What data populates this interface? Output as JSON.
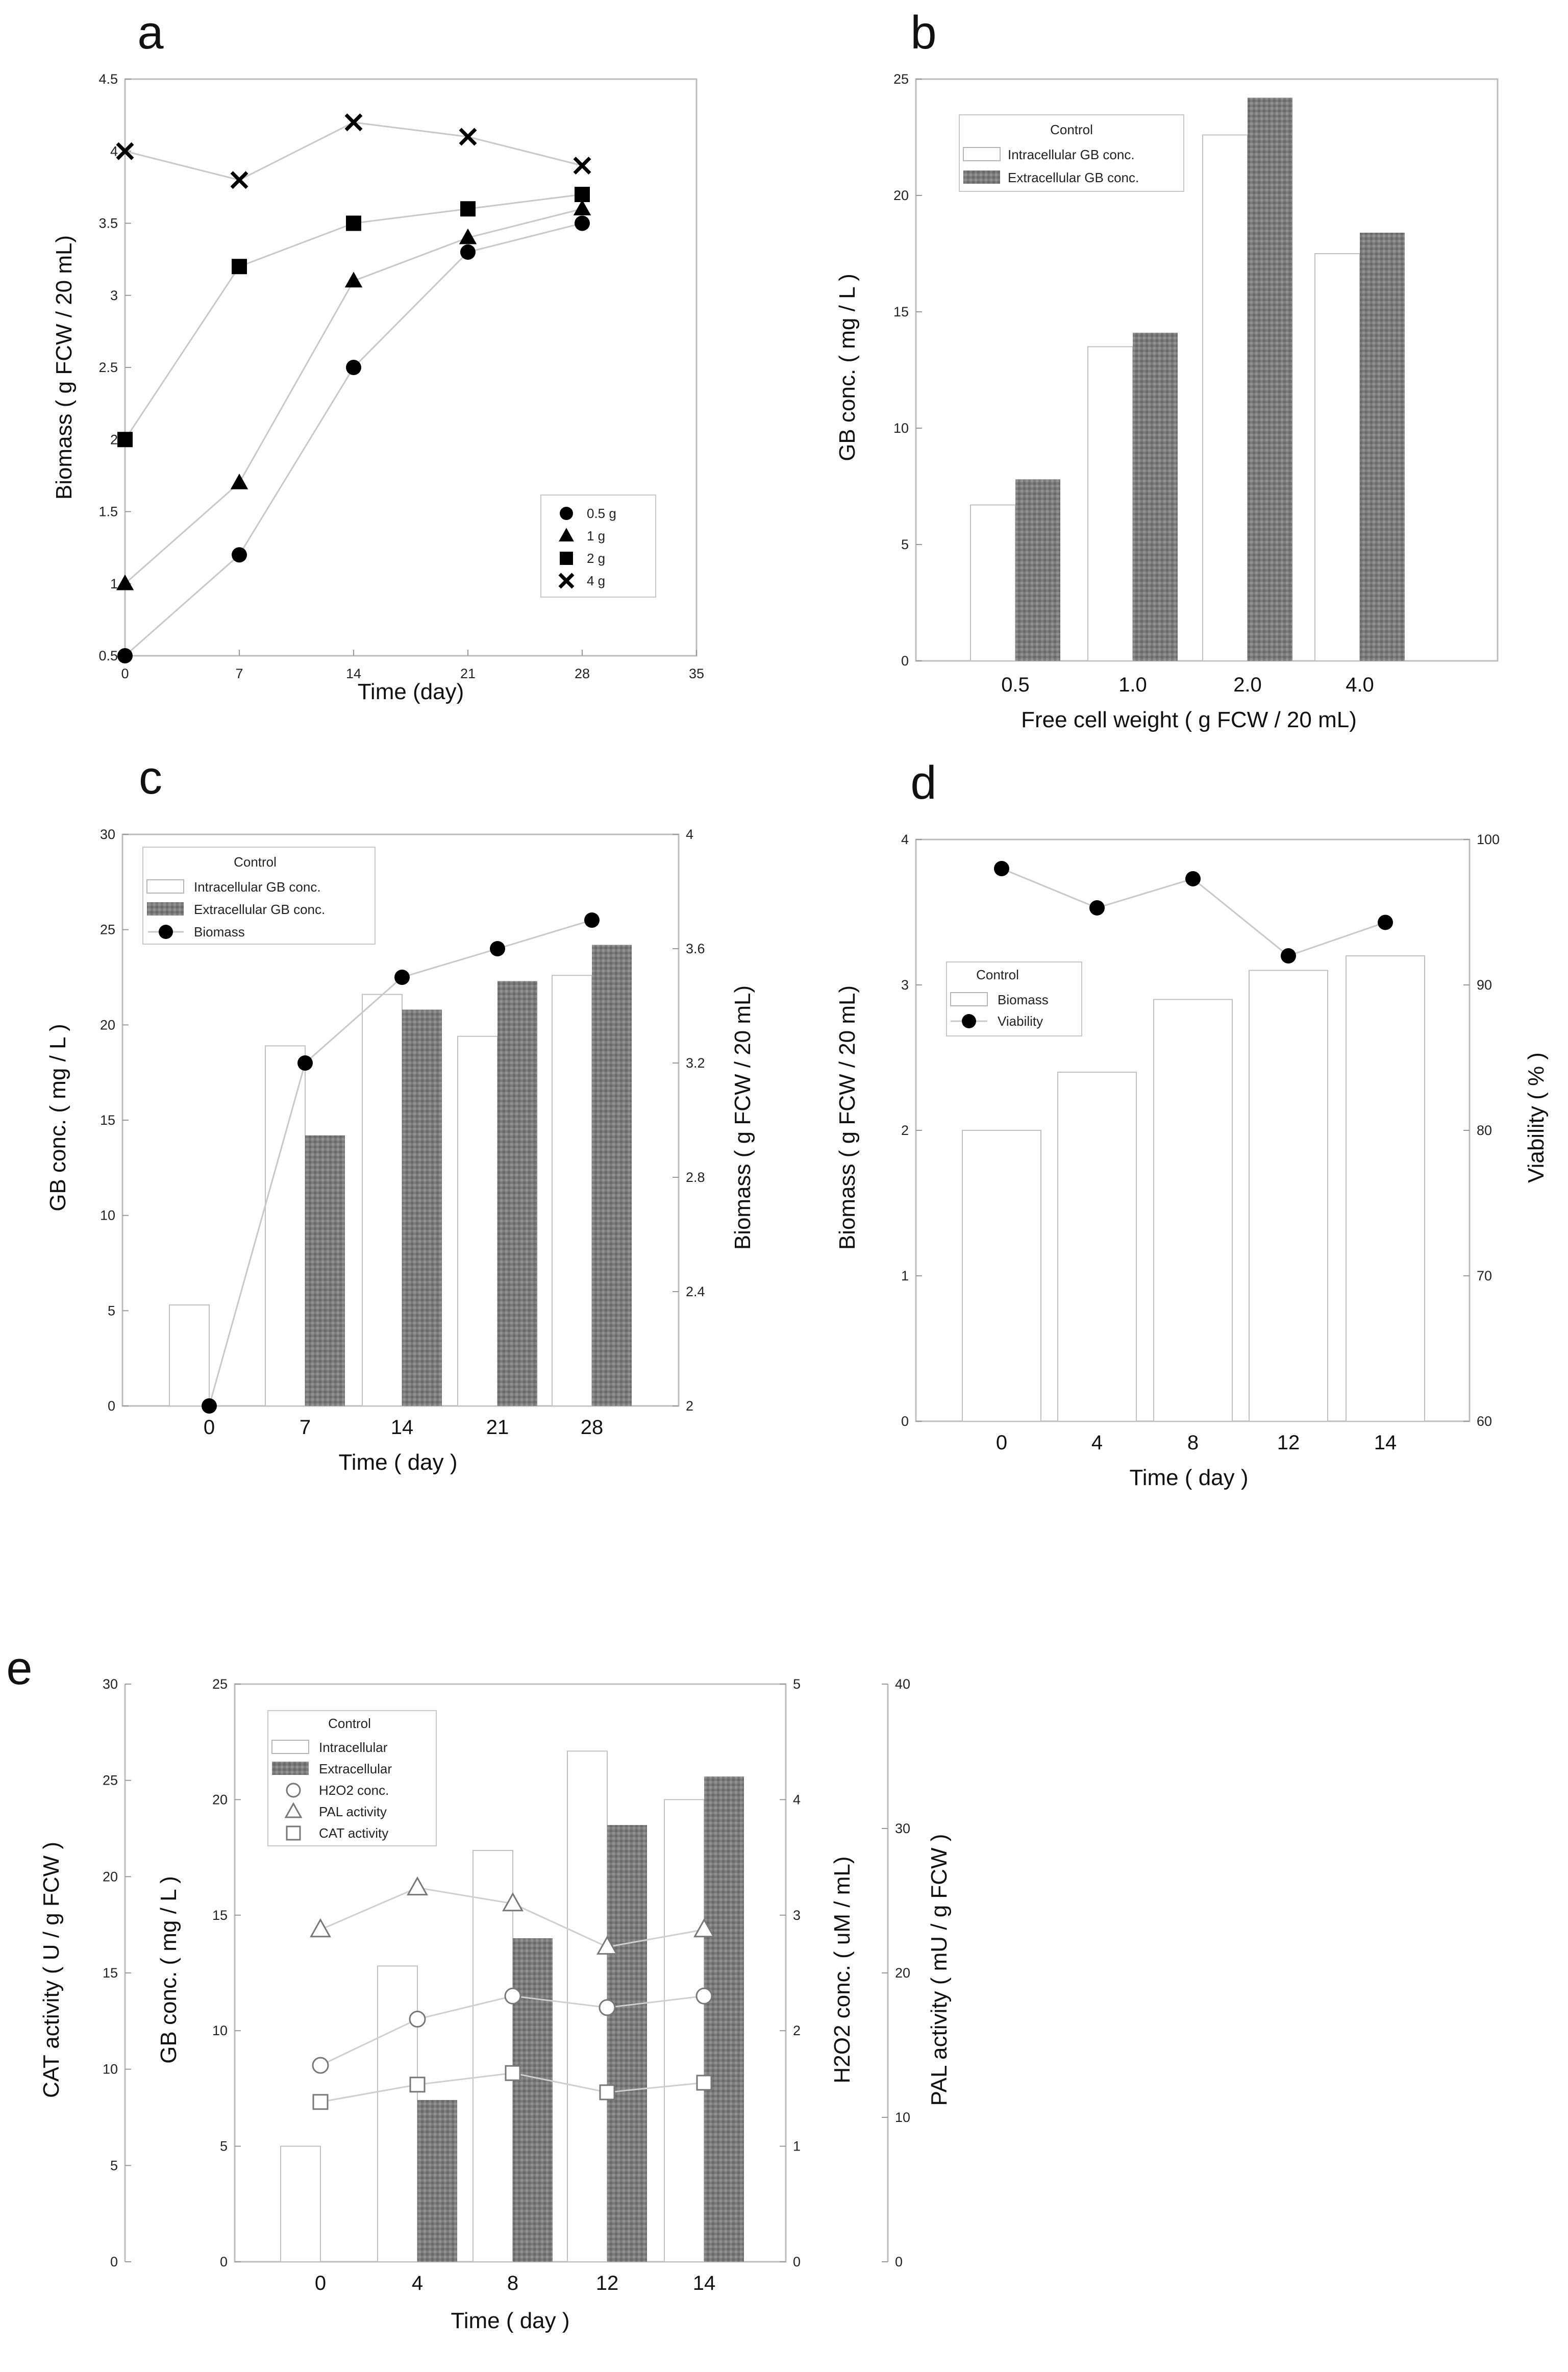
{
  "chart_data": [
    {
      "panel": "a",
      "type": "scatter",
      "xlabel": "Time (day)",
      "ylabel": "Biomass ( g FCW / 20 mL)",
      "xlim": [
        0,
        35
      ],
      "ylim": [
        0.5,
        4.5
      ],
      "xticks": [
        "0",
        "7",
        "14",
        "21",
        "28",
        "35"
      ],
      "yticks": [
        "0.5",
        "1",
        "1.5",
        "2",
        "2.5",
        "3",
        "3.5",
        "4",
        "4.5"
      ],
      "x": [
        0,
        7,
        14,
        21,
        28
      ],
      "legend_position": "bottom-right",
      "series": [
        {
          "name": "0.5 g",
          "marker": "circle",
          "values": [
            0.5,
            1.2,
            2.5,
            3.3,
            3.5
          ]
        },
        {
          "name": "1 g",
          "marker": "triangle",
          "values": [
            1.0,
            1.7,
            3.1,
            3.4,
            3.6
          ]
        },
        {
          "name": "2 g",
          "marker": "square",
          "values": [
            2.0,
            3.2,
            3.5,
            3.6,
            3.7
          ]
        },
        {
          "name": "4 g",
          "marker": "cross",
          "values": [
            4.0,
            3.8,
            4.2,
            4.1,
            3.9
          ]
        }
      ]
    },
    {
      "panel": "b",
      "type": "bar",
      "xlabel": "Free cell weight ( g FCW / 20 mL)",
      "ylabel": "GB conc. ( mg / L )",
      "ylim": [
        0,
        25
      ],
      "yticks": [
        "0",
        "5",
        "10",
        "15",
        "20",
        "25"
      ],
      "categories": [
        "0.5",
        "1.0",
        "2.0",
        "4.0"
      ],
      "legend_title": "Control",
      "legend_position": "top-left",
      "series": [
        {
          "name": "Intracellular GB conc.",
          "style": "white",
          "values": [
            6.7,
            13.5,
            22.6,
            17.5
          ]
        },
        {
          "name": "Extracellular GB conc.",
          "style": "gray",
          "values": [
            7.8,
            14.1,
            24.2,
            18.4
          ]
        }
      ]
    },
    {
      "panel": "c",
      "type": "bar",
      "xlabel": "Time ( day )",
      "ylabel": "GB conc. ( mg / L )",
      "y2label": "Biomass ( g FCW / 20 mL)",
      "ylim": [
        0,
        30
      ],
      "y2lim": [
        2,
        4
      ],
      "yticks": [
        "0",
        "5",
        "10",
        "15",
        "20",
        "25",
        "30"
      ],
      "y2ticks": [
        "2",
        "2.4",
        "2.8",
        "3.2",
        "3.6",
        "4"
      ],
      "categories": [
        "0",
        "7",
        "14",
        "21",
        "28"
      ],
      "legend_title": "Control",
      "legend_position": "top-left",
      "series": [
        {
          "name": "Intracellular GB conc.",
          "style": "white",
          "values": [
            5.3,
            18.9,
            21.6,
            19.4,
            22.6
          ]
        },
        {
          "name": "Extracellular GB conc.",
          "style": "gray",
          "values": [
            0,
            14.2,
            20.8,
            22.3,
            24.2
          ]
        },
        {
          "name": "Biomass",
          "style": "filled-circle-line",
          "axis": "right",
          "values": [
            2.0,
            3.2,
            3.5,
            3.6,
            3.7
          ]
        }
      ]
    },
    {
      "panel": "d",
      "type": "bar",
      "xlabel": "Time ( day )",
      "ylabel": "Biomass ( g FCW / 20 mL)",
      "y2label": "Viability ( % )",
      "ylim": [
        0,
        4
      ],
      "y2lim": [
        60,
        100
      ],
      "yticks": [
        "0",
        "1",
        "2",
        "3",
        "4"
      ],
      "y2ticks": [
        "60",
        "70",
        "80",
        "90",
        "100"
      ],
      "categories": [
        "0",
        "4",
        "8",
        "12",
        "14"
      ],
      "legend_title": "Control",
      "legend_position": "middle-left",
      "series": [
        {
          "name": "Biomass",
          "style": "white",
          "values": [
            2.0,
            2.4,
            2.9,
            3.1,
            3.2
          ]
        },
        {
          "name": "Viability",
          "style": "filled-circle-line",
          "axis": "right",
          "values": [
            98,
            95.3,
            97.3,
            92,
            94.3
          ]
        }
      ]
    },
    {
      "panel": "e",
      "type": "bar",
      "xlabel": "Time ( day )",
      "ylabel": "GB conc. ( mg / L )",
      "y_outer_left_label": "CAT activity ( U / g FCW )",
      "y_inner_right_label": "H2O2 conc. ( uM / mL)",
      "y_outer_right_label": "PAL activity ( mU / g FCW )",
      "ylim": [
        0,
        25
      ],
      "y_outer_left_lim": [
        0,
        30
      ],
      "y_inner_right_lim": [
        0,
        5
      ],
      "y_outer_right_lim": [
        0,
        40
      ],
      "yticks": [
        "0",
        "5",
        "10",
        "15",
        "20",
        "25"
      ],
      "y_outer_left_ticks": [
        "0",
        "5",
        "10",
        "15",
        "20",
        "25",
        "30"
      ],
      "y_inner_right_ticks": [
        "0",
        "1",
        "2",
        "3",
        "4",
        "5"
      ],
      "y_outer_right_ticks": [
        "0",
        "10",
        "20",
        "30",
        "40"
      ],
      "categories": [
        "0",
        "4",
        "8",
        "12",
        "14"
      ],
      "legend_title": "Control",
      "legend_position": "top-left",
      "series": [
        {
          "name": "Intracellular",
          "style": "white",
          "values": [
            5.0,
            12.8,
            17.8,
            22.1,
            20.0
          ]
        },
        {
          "name": "Extracellular",
          "style": "gray",
          "values": [
            0,
            7.0,
            14.0,
            18.9,
            21.0
          ]
        },
        {
          "name": "H2O2 conc.",
          "style": "open-circle",
          "axis": "inner-right",
          "values": [
            1.7,
            2.1,
            2.3,
            2.2,
            2.3
          ]
        },
        {
          "name": "PAL activity",
          "style": "open-triangle",
          "axis": "outer-right",
          "values": [
            23.0,
            25.9,
            24.8,
            21.8,
            23.0
          ]
        },
        {
          "name": "CAT activity",
          "style": "open-square",
          "axis": "outer-left",
          "values": [
            8.3,
            9.2,
            9.8,
            8.8,
            9.3
          ]
        }
      ]
    }
  ]
}
